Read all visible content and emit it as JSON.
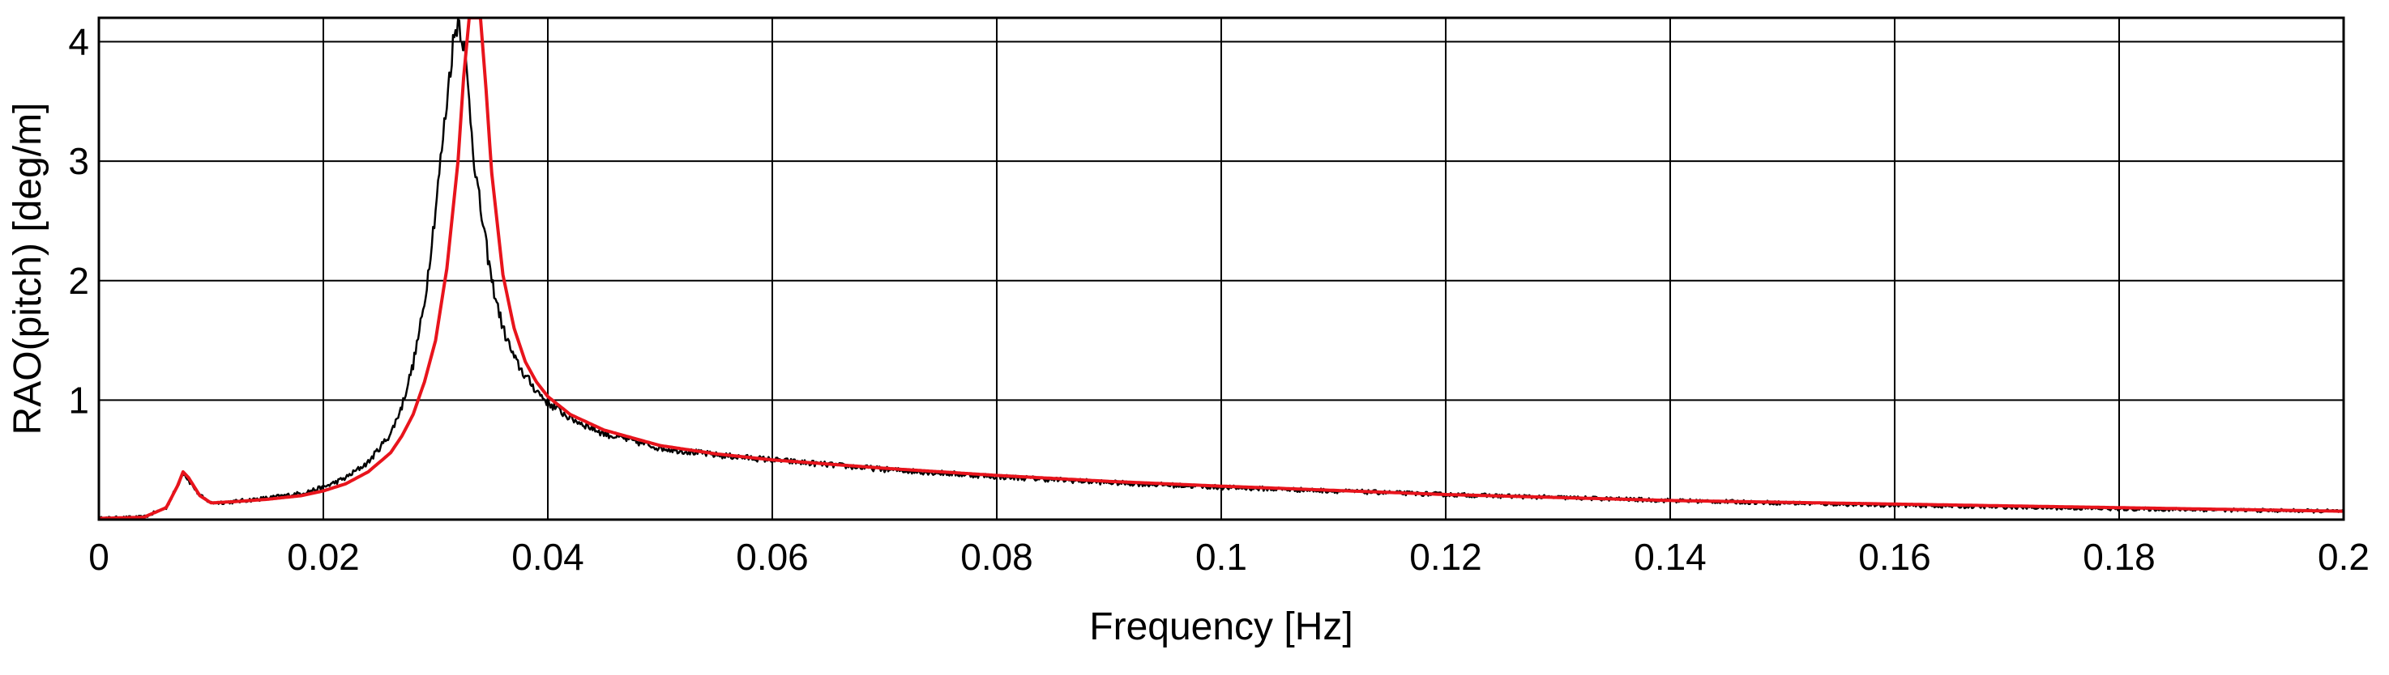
{
  "chart_data": {
    "type": "line",
    "title": "",
    "xlabel": "Frequency [Hz]",
    "ylabel": "RAO(pitch) [deg/m]",
    "xlim": [
      0,
      0.2
    ],
    "ylim": [
      0,
      4.2
    ],
    "grid": true,
    "x_ticks": [
      0,
      0.02,
      0.04,
      0.06,
      0.08,
      0.1,
      0.12,
      0.14,
      0.16,
      0.18,
      0.2
    ],
    "x_tick_labels": [
      "0",
      "0.02",
      "0.04",
      "0.06",
      "0.08",
      "0.1",
      "0.12",
      "0.14",
      "0.16",
      "0.18",
      "0.2"
    ],
    "y_ticks": [
      1,
      2,
      3,
      4
    ],
    "y_tick_labels": [
      "1",
      "2",
      "3",
      "4"
    ],
    "series": [
      {
        "color": "#000000",
        "style": "noisy",
        "x": [
          0,
          0.004,
          0.006,
          0.007,
          0.0075,
          0.008,
          0.009,
          0.01,
          0.012,
          0.015,
          0.018,
          0.02,
          0.022,
          0.024,
          0.026,
          0.027,
          0.028,
          0.029,
          0.03,
          0.031,
          0.0315,
          0.032,
          0.0325,
          0.033,
          0.0335,
          0.034,
          0.0345,
          0.035,
          0.036,
          0.037,
          0.038,
          0.039,
          0.04,
          0.042,
          0.045,
          0.05,
          0.055,
          0.06,
          0.07,
          0.08,
          0.09,
          0.1,
          0.12,
          0.14,
          0.16,
          0.18,
          0.2
        ],
        "y": [
          0.01,
          0.02,
          0.1,
          0.28,
          0.4,
          0.33,
          0.2,
          0.14,
          0.15,
          0.18,
          0.22,
          0.27,
          0.35,
          0.48,
          0.72,
          0.95,
          1.3,
          1.8,
          2.6,
          3.5,
          3.95,
          4.2,
          4.0,
          3.5,
          2.95,
          2.6,
          2.3,
          2.0,
          1.6,
          1.35,
          1.2,
          1.08,
          0.98,
          0.85,
          0.72,
          0.6,
          0.54,
          0.5,
          0.42,
          0.36,
          0.31,
          0.27,
          0.21,
          0.16,
          0.12,
          0.09,
          0.07
        ]
      },
      {
        "color": "#e8141c",
        "style": "smooth",
        "x": [
          0,
          0.004,
          0.006,
          0.007,
          0.0075,
          0.008,
          0.009,
          0.01,
          0.012,
          0.015,
          0.018,
          0.02,
          0.022,
          0.024,
          0.026,
          0.027,
          0.028,
          0.029,
          0.03,
          0.031,
          0.032,
          0.0325,
          0.033,
          0.0335,
          0.034,
          0.0345,
          0.035,
          0.036,
          0.037,
          0.038,
          0.039,
          0.04,
          0.042,
          0.045,
          0.05,
          0.055,
          0.06,
          0.07,
          0.08,
          0.09,
          0.1,
          0.12,
          0.14,
          0.16,
          0.18,
          0.2
        ],
        "y": [
          0.01,
          0.02,
          0.1,
          0.28,
          0.4,
          0.35,
          0.2,
          0.14,
          0.15,
          0.17,
          0.2,
          0.24,
          0.3,
          0.4,
          0.56,
          0.7,
          0.88,
          1.15,
          1.5,
          2.1,
          3.0,
          3.7,
          4.2,
          4.2,
          4.2,
          3.6,
          2.9,
          2.05,
          1.6,
          1.32,
          1.15,
          1.03,
          0.88,
          0.75,
          0.62,
          0.55,
          0.5,
          0.43,
          0.37,
          0.32,
          0.28,
          0.21,
          0.16,
          0.13,
          0.1,
          0.07
        ]
      }
    ]
  }
}
